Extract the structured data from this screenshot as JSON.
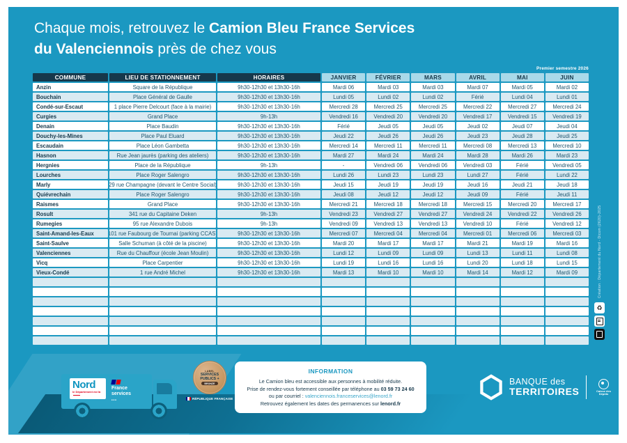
{
  "page": {
    "title": {
      "pre": "Chaque mois, retrouvez le ",
      "bold1": "Camion Bleu France Services",
      "bold2": "du Valenciennois",
      "post": " près de chez vous"
    },
    "semester_note": "Premier semestre 2026",
    "side_credit": "Création : Département du Nord - Dicom (2620)-2025",
    "colors": {
      "background_teal": "#1b98c1",
      "header_dark": "#16384b",
      "month_header": "#a9d9e9",
      "row_light": "#d9eaf2",
      "accent_red": "#e2001a"
    }
  },
  "table": {
    "headers": [
      "COMMUNE",
      "LIEU DE STATIONNEMENT",
      "HORAIRES",
      "JANVIER",
      "FÉVRIER",
      "MARS",
      "AVRIL",
      "MAI",
      "JUIN"
    ],
    "empty_row_count": 7,
    "rows": [
      {
        "commune": "Anzin",
        "lieu": "Square de la République",
        "horaires": "9h30-12h30 et 13h30-16h",
        "dates": [
          "Mardi 06",
          "Mardi 03",
          "Mardi 03",
          "Mardi 07",
          "Mardi 05",
          "Mardi 02"
        ]
      },
      {
        "commune": "Bouchain",
        "lieu": "Place Général de Gaulle",
        "horaires": "9h30-12h30 et 13h30-16h",
        "dates": [
          "Lundi 05",
          "Lundi 02",
          "Lundi 02",
          "Férié",
          "Lundi 04",
          "Lundi 01"
        ]
      },
      {
        "commune": "Condé-sur-Escaut",
        "lieu": "1 place Pierre Delcourt (face à la mairie)",
        "horaires": "9h30-12h30 et 13h30-16h",
        "dates": [
          "Mercredi 28",
          "Mercredi 25",
          "Mercredi 25",
          "Mercredi 22",
          "Mercredi 27",
          "Mercredi 24"
        ]
      },
      {
        "commune": "Curgies",
        "lieu": "Grand Place",
        "horaires": "9h-13h",
        "dates": [
          "Vendredi 16",
          "Vendredi 20",
          "Vendredi 20",
          "Vendredi 17",
          "Vendredi 15",
          "Vendredi 19"
        ]
      },
      {
        "commune": "Denain",
        "lieu": "Place Baudin",
        "horaires": "9h30-12h30 et 13h30-16h",
        "dates": [
          "Férié",
          "Jeudi 05",
          "Jeudi 05",
          "Jeudi 02",
          "Jeudi 07",
          "Jeudi 04"
        ]
      },
      {
        "commune": "Douchy-les-Mines",
        "lieu": "Place Paul Eluard",
        "horaires": "9h30-12h30 et 13h30-16h",
        "dates": [
          "Jeudi 22",
          "Jeudi 26",
          "Jeudi 26",
          "Jeudi 23",
          "Jeudi 28",
          "Jeudi 25"
        ]
      },
      {
        "commune": "Escaudain",
        "lieu": "Place Léon Gambetta",
        "horaires": "9h30-12h30 et 13h30-16h",
        "dates": [
          "Mercredi 14",
          "Mercredi 11",
          "Mercredi 11",
          "Mercredi 08",
          "Mercredi 13",
          "Mercredi 10"
        ]
      },
      {
        "commune": "Hasnon",
        "lieu": "Rue Jean jaurès (parking des ateliers)",
        "horaires": "9h30-12h30 et 13h30-16h",
        "dates": [
          "Mardi 27",
          "Mardi 24",
          "Mardi 24",
          "Mardi 28",
          "Mardi 26",
          "Mardi 23"
        ]
      },
      {
        "commune": "Hergnies",
        "lieu": "Place de la République",
        "horaires": "9h-13h",
        "dates": [
          "-",
          "Vendredi 06",
          "Vendredi 06",
          "Vendredi 03",
          "Férié",
          "Vendredi 05"
        ]
      },
      {
        "commune": "Lourches",
        "lieu": "Place Roger Salengro",
        "horaires": "9h30-12h30 et 13h30-16h",
        "dates": [
          "Lundi 26",
          "Lundi 23",
          "Lundi 23",
          "Lundi 27",
          "Férié",
          "Lundi 22"
        ]
      },
      {
        "commune": "Marly",
        "lieu": "29 rue Champagne (devant le Centre Social)",
        "horaires": "9h30-12h30 et 13h30-16h",
        "dates": [
          "Jeudi 15",
          "Jeudi 19",
          "Jeudi 19",
          "Jeudi 16",
          "Jeudi 21",
          "Jeudi 18"
        ]
      },
      {
        "commune": "Quiévrechain",
        "lieu": "Place Roger Salengro",
        "horaires": "9h30-12h30 et 13h30-16h",
        "dates": [
          "Jeudi 08",
          "Jeudi 12",
          "Jeudi 12",
          "Jeudi 09",
          "Férié",
          "Jeudi 11"
        ]
      },
      {
        "commune": "Raismes",
        "lieu": "Grand Place",
        "horaires": "9h30-12h30 et 13h30-16h",
        "dates": [
          "Mercredi 21",
          "Mercredi 18",
          "Mercredi 18",
          "Mercredi 15",
          "Mercredi 20",
          "Mercredi 17"
        ]
      },
      {
        "commune": "Rosult",
        "lieu": "341 rue du Capitaine Deken",
        "horaires": "9h-13h",
        "dates": [
          "Vendredi 23",
          "Vendredi 27",
          "Vendredi 27",
          "Vendredi 24",
          "Vendredi 22",
          "Vendredi 26"
        ]
      },
      {
        "commune": "Rumegies",
        "lieu": "95 rue Alexandre Dubois",
        "horaires": "9h-13h",
        "dates": [
          "Vendredi 09",
          "Vendredi 13",
          "Vendredi 13",
          "Vendredi 10",
          "Férié",
          "Vendredi 12"
        ]
      },
      {
        "commune": "Saint-Amand-les-Eaux",
        "lieu": "101 rue Faubourg de Tournai (parking CCAS)",
        "horaires": "9h30-12h30 et 13h30-16h",
        "dates": [
          "Mercredi 07",
          "Mercredi 04",
          "Mercredi 04",
          "Mercredi 01",
          "Mercredi 06",
          "Mercredi 03"
        ]
      },
      {
        "commune": "Saint-Saulve",
        "lieu": "Salle Schuman (à côté de la piscine)",
        "horaires": "9h30-12h30 et 13h30-16h",
        "dates": [
          "Mardi 20",
          "Mardi 17",
          "Mardi 17",
          "Mardi 21",
          "Mardi 19",
          "Mardi 16"
        ]
      },
      {
        "commune": "Valenciennes",
        "lieu": "Rue du Chauffour (école Jean Moulin)",
        "horaires": "9h30-12h30 et 13h30-16h",
        "dates": [
          "Lundi 12",
          "Lundi 09",
          "Lundi 09",
          "Lundi 13",
          "Lundi 11",
          "Lundi 08"
        ]
      },
      {
        "commune": "Vicq",
        "lieu": "Place Carpentier",
        "horaires": "9h30-12h30 et 13h30-16h",
        "dates": [
          "Lundi 19",
          "Lundi 16",
          "Lundi 16",
          "Lundi 20",
          "Lundi 18",
          "Lundi 15"
        ]
      },
      {
        "commune": "Vieux-Condé",
        "lieu": "1 rue André Michel",
        "horaires": "9h30-12h30 et 13h30-16h",
        "dates": [
          "Mardi 13",
          "Mardi 10",
          "Mardi 10",
          "Mardi 14",
          "Mardi 12",
          "Mardi 09"
        ]
      }
    ]
  },
  "footer": {
    "nord_logo": {
      "name": "Nord",
      "tagline": "le Département est là"
    },
    "france_services": {
      "line1": "France",
      "line2": "services"
    },
    "label_badge": {
      "top": "LABEL",
      "mid1": "SERVICES",
      "mid2": "PUBLICS +",
      "banner": "BRONZE"
    },
    "republique": "RÉPUBLIQUE FRANÇAISE",
    "info_box": {
      "title": "INFORMATION",
      "line1": "Le Camion bleu est accessible aux personnes à mobilité réduite.",
      "line2_pre": "Prise de rendez-vous fortement conseillée par téléphone au ",
      "line2_phone": "03 59 73 24 60",
      "line3_pre": "ou par courriel : ",
      "line3_email": "valenciennois.franceservices@lenord.fr",
      "line4_pre": "Retrouvez également les dates des permanences sur ",
      "line4_site": "lenord.fr"
    },
    "banque_logo": {
      "line1": "BANQUE des",
      "line2": "TERRITOIRES",
      "caisse": "Caisse des Dépôts"
    }
  }
}
